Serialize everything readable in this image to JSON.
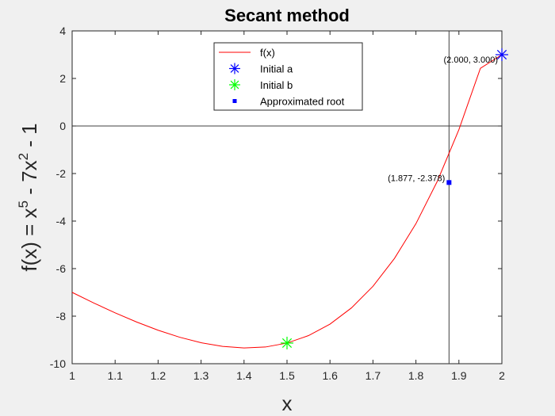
{
  "chart_data": {
    "type": "line",
    "title": "Secant method",
    "xlabel": "x",
    "ylabel_parts": {
      "prefix": "f(x) = x",
      "exp1": "5",
      "middle": " - 7x",
      "exp2": "2",
      "suffix": " - 1"
    },
    "xlim": [
      1,
      2
    ],
    "ylim": [
      -10,
      4
    ],
    "xticks": [
      1,
      1.1,
      1.2,
      1.3,
      1.4,
      1.5,
      1.6,
      1.7,
      1.8,
      1.9,
      2
    ],
    "xtick_labels": [
      "1",
      "1.1",
      "1.2",
      "1.3",
      "1.4",
      "1.5",
      "1.6",
      "1.7",
      "1.8",
      "1.9",
      "2"
    ],
    "yticks": [
      -10,
      -8,
      -6,
      -4,
      -2,
      0,
      2,
      4
    ],
    "ytick_labels": [
      "-10",
      "-8",
      "-6",
      "-4",
      "-2",
      "0",
      "2",
      "4"
    ],
    "series": [
      {
        "name": "f(x)",
        "kind": "line",
        "color": "#ff0000",
        "x": [
          1,
          1.05,
          1.1,
          1.15,
          1.2,
          1.25,
          1.3,
          1.35,
          1.4,
          1.45,
          1.5,
          1.55,
          1.6,
          1.65,
          1.7,
          1.75,
          1.8,
          1.85,
          1.9,
          1.95,
          2
        ],
        "y": [
          -7,
          -7.4428,
          -7.8595,
          -8.2463,
          -8.5917,
          -8.8857,
          -9.1172,
          -9.2725,
          -9.3382,
          -9.2976,
          -9.1313,
          -8.8176,
          -8.3342,
          -7.6527,
          -6.7431,
          -5.5733,
          -4.1102,
          -2.3162,
          -0.151,
          2.4278,
          3
        ]
      },
      {
        "name": "Initial a",
        "kind": "marker",
        "marker": "asterisk",
        "color": "#0000ff",
        "x": [
          2
        ],
        "y": [
          3
        ]
      },
      {
        "name": "Initial b",
        "kind": "marker",
        "marker": "asterisk",
        "color": "#00ff00",
        "x": [
          1.5
        ],
        "y": [
          -9.1313
        ]
      },
      {
        "name": "Approximated root",
        "kind": "marker",
        "marker": "square",
        "color": "#0000ff",
        "x": [
          1.877
        ],
        "y": [
          -2.378
        ]
      }
    ],
    "reference_lines": {
      "horizontal_y": 0,
      "vertical_x": 1.877,
      "color": "#404040"
    },
    "annotations": [
      {
        "text": "(2.000, 3.000)",
        "x": 2,
        "y": 3
      },
      {
        "text": "(1.877, -2.378)",
        "x": 1.877,
        "y": -2.378
      }
    ],
    "legend_position": "top-center",
    "grid": false
  }
}
